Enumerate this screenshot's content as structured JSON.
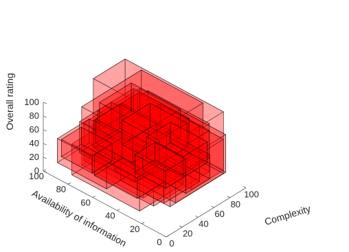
{
  "chart_data": {
    "type": "3d-box",
    "title": "",
    "zlabel": "Overall rating",
    "ylabel": "Availability of information",
    "xlabel": "Complexity",
    "x_ticks": [
      "0",
      "20",
      "40",
      "60",
      "80",
      "100"
    ],
    "y_ticks": [
      "0",
      "20",
      "40",
      "60",
      "80",
      "100"
    ],
    "z_ticks": [
      "0",
      "20",
      "40",
      "60",
      "80",
      "100"
    ],
    "xlim": [
      0,
      100
    ],
    "ylim": [
      0,
      100
    ],
    "zlim": [
      0,
      100
    ],
    "face_color": "#ff0000",
    "edge_color": "#000000",
    "face_alpha": 0.2,
    "boxes": [
      {
        "x": [
          55,
          95
        ],
        "y": [
          15,
          95
        ],
        "z": [
          15,
          100
        ]
      },
      {
        "x": [
          25,
          100
        ],
        "y": [
          35,
          85
        ],
        "z": [
          5,
          90
        ]
      },
      {
        "x": [
          15,
          85
        ],
        "y": [
          20,
          70
        ],
        "z": [
          15,
          85
        ]
      },
      {
        "x": [
          20,
          90
        ],
        "y": [
          10,
          80
        ],
        "z": [
          20,
          75
        ]
      },
      {
        "x": [
          30,
          80
        ],
        "y": [
          25,
          75
        ],
        "z": [
          25,
          80
        ]
      },
      {
        "x": [
          5,
          60
        ],
        "y": [
          25,
          80
        ],
        "z": [
          10,
          55
        ]
      },
      {
        "x": [
          10,
          50
        ],
        "y": [
          55,
          95
        ],
        "z": [
          10,
          45
        ]
      },
      {
        "x": [
          35,
          95
        ],
        "y": [
          15,
          65
        ],
        "z": [
          10,
          60
        ]
      },
      {
        "x": [
          40,
          75
        ],
        "y": [
          30,
          70
        ],
        "z": [
          30,
          90
        ]
      },
      {
        "x": [
          20,
          65
        ],
        "y": [
          15,
          50
        ],
        "z": [
          20,
          65
        ]
      },
      {
        "x": [
          45,
          90
        ],
        "y": [
          40,
          85
        ],
        "z": [
          20,
          70
        ]
      },
      {
        "x": [
          30,
          70
        ],
        "y": [
          45,
          90
        ],
        "z": [
          15,
          60
        ]
      },
      {
        "x": [
          50,
          85
        ],
        "y": [
          20,
          60
        ],
        "z": [
          35,
          75
        ]
      },
      {
        "x": [
          25,
          60
        ],
        "y": [
          35,
          75
        ],
        "z": [
          40,
          80
        ]
      },
      {
        "x": [
          55,
          95
        ],
        "y": [
          50,
          90
        ],
        "z": [
          30,
          70
        ]
      },
      {
        "x": [
          10,
          45
        ],
        "y": [
          30,
          65
        ],
        "z": [
          20,
          50
        ]
      },
      {
        "x": [
          40,
          70
        ],
        "y": [
          10,
          45
        ],
        "z": [
          25,
          60
        ]
      },
      {
        "x": [
          35,
          65
        ],
        "y": [
          50,
          80
        ],
        "z": [
          35,
          70
        ]
      },
      {
        "x": [
          45,
          80
        ],
        "y": [
          35,
          65
        ],
        "z": [
          40,
          75
        ]
      },
      {
        "x": [
          15,
          40
        ],
        "y": [
          70,
          95
        ],
        "z": [
          15,
          40
        ]
      },
      {
        "x": [
          60,
          90
        ],
        "y": [
          25,
          55
        ],
        "z": [
          20,
          50
        ]
      },
      {
        "x": [
          30,
          55
        ],
        "y": [
          20,
          45
        ],
        "z": [
          30,
          55
        ]
      }
    ]
  }
}
